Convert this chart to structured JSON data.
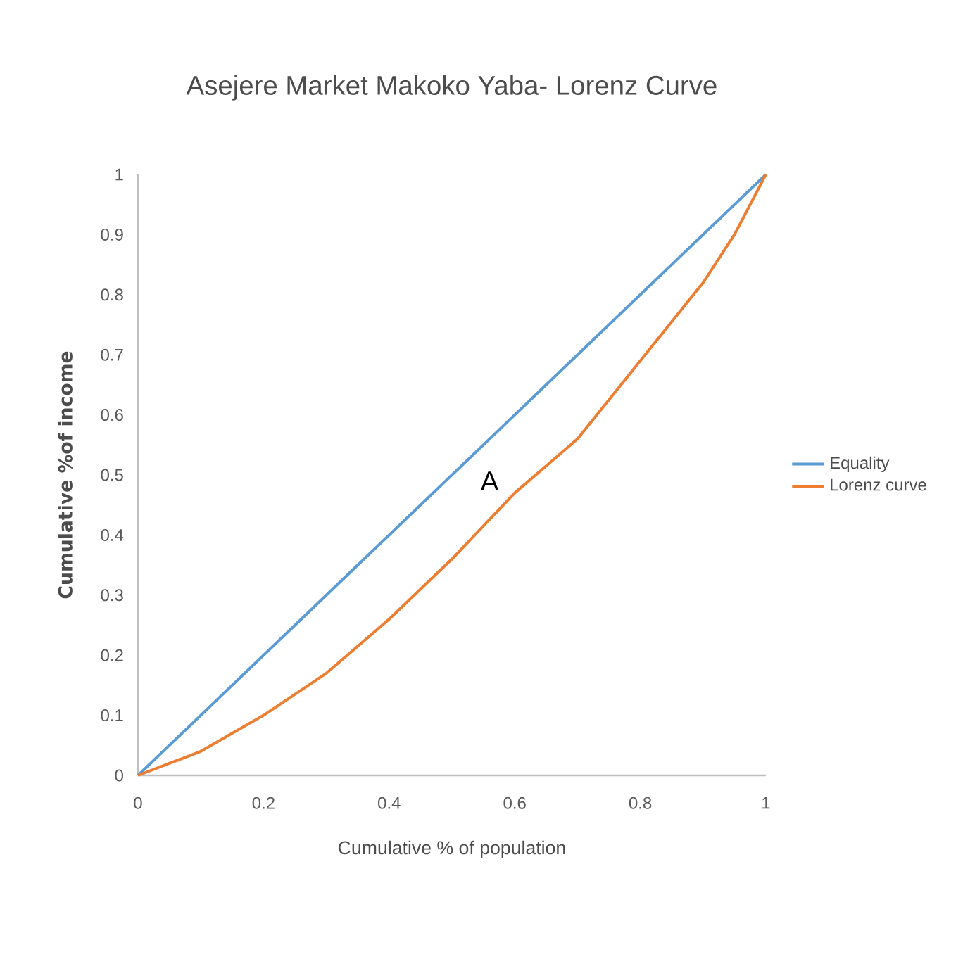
{
  "chart_data": {
    "type": "line",
    "title": "Asejere Market Makoko Yaba- Lorenz Curve",
    "xlabel": "Cumulative % of population",
    "ylabel": "Cumulative %of income",
    "series": [
      {
        "name": "Equality",
        "color": "#5b9bd5",
        "x": [
          0,
          1
        ],
        "values": [
          0,
          1
        ]
      },
      {
        "name": "Lorenz curve",
        "color": "#ed7d31",
        "x": [
          0,
          0.05,
          0.1,
          0.2,
          0.3,
          0.4,
          0.5,
          0.6,
          0.7,
          0.8,
          0.9,
          0.95,
          1
        ],
        "values": [
          0,
          0.02,
          0.04,
          0.1,
          0.17,
          0.26,
          0.36,
          0.47,
          0.56,
          0.69,
          0.82,
          0.9,
          1
        ]
      }
    ],
    "xlim": [
      0,
      1
    ],
    "ylim": [
      0,
      1
    ],
    "xticks": [
      0,
      0.2,
      0.4,
      0.6,
      0.8,
      1
    ],
    "yticks": [
      0,
      0.1,
      0.2,
      0.3,
      0.4,
      0.5,
      0.6,
      0.7,
      0.8,
      0.9,
      1
    ],
    "legend": "right",
    "annotations": [
      "A"
    ]
  }
}
